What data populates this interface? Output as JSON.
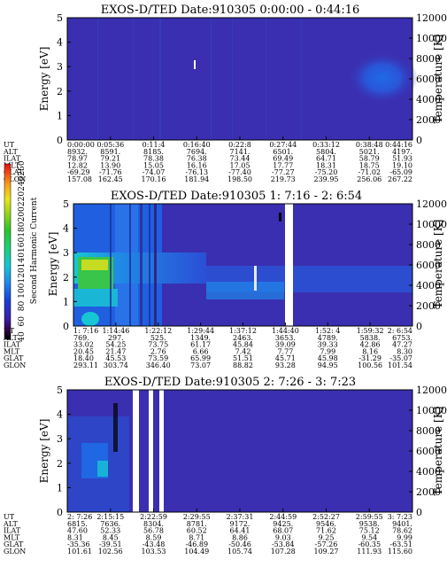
{
  "chart_data": [
    {
      "type": "heatmap",
      "title": "EXOS-D/TED   Date:910305  0:00:00 - 0:44:16",
      "ylabel": "Energy [eV]",
      "y2label": "Temperature [K]",
      "ylim": [
        0,
        5
      ],
      "y_ticks": [
        "0",
        "1",
        "2",
        "3",
        "4",
        "5"
      ],
      "y2lim": [
        0,
        12000
      ],
      "y2_ticks": [
        "0",
        "2000",
        "4000",
        "6000",
        "8000",
        "10000",
        "12000"
      ],
      "orbit_labels": [
        "UT",
        "ALT",
        "ILAT",
        "MLT",
        "GLAT",
        "GLON"
      ],
      "orbit_columns": [
        [
          "0:00:00",
          "8932.",
          "78.97",
          "12.82",
          "-69.29",
          "157.08"
        ],
        [
          "0:05:36",
          "8591.",
          "79.21",
          "13.90",
          "-71.76",
          "162.45"
        ],
        [
          "0:11:4",
          "8185.",
          "78.38",
          "15.05",
          "-74.07",
          "170.16"
        ],
        [
          "0:16:40",
          "7694.",
          "76.38",
          "16.16",
          "-76.13",
          "181.94"
        ],
        [
          "0:22:8",
          "7141.",
          "73.44",
          "17.05",
          "-77.40",
          "198.50"
        ],
        [
          "0:27:44",
          "6501.",
          "69.49",
          "17.77",
          "-77.27",
          "219.73"
        ],
        [
          "0:33:12",
          "5804.",
          "64.71",
          "18.31",
          "-75.20",
          "239.95"
        ],
        [
          "0:38:48",
          "5021.",
          "58.79",
          "18.75",
          "-71.02",
          "256.06"
        ],
        [
          "0:44:16",
          "4197.",
          "51.93",
          "19.10",
          "-65.09",
          "267.22"
        ]
      ]
    },
    {
      "type": "heatmap",
      "title": "EXOS-D/TED   Date:910305  1: 7:16 - 2: 6:54",
      "ylabel": "Energy [eV]",
      "y2label": "Temperature [K]",
      "ylim": [
        0,
        5
      ],
      "y_ticks": [
        "0",
        "1",
        "2",
        "3",
        "4",
        "5"
      ],
      "y2lim": [
        0,
        12000
      ],
      "y2_ticks": [
        "0",
        "2000",
        "4000",
        "6000",
        "8000",
        "10000",
        "12000"
      ],
      "orbit_labels": [
        "UT",
        "ALT",
        "ILAT",
        "MLT",
        "GLAT",
        "GLON"
      ],
      "orbit_columns": [
        [
          "1: 7:16",
          "769.",
          "33.02",
          "20.45",
          "18.40",
          "293.11"
        ],
        [
          "1:14:46",
          "297.",
          "54.25",
          "21.47",
          "45.53",
          "303.74"
        ],
        [
          "1:22:12",
          "525.",
          "73.75",
          "2.76",
          "73.59",
          "346.40"
        ],
        [
          "1:29:44",
          "1349.",
          "61.17",
          "6.66",
          "65.99",
          "73.07"
        ],
        [
          "1:37:12",
          "2463.",
          "45.84",
          "7.42",
          "51.51",
          "88.82"
        ],
        [
          "1:44:40",
          "3653.",
          "39.09",
          "7.77",
          "45.71",
          "93.28"
        ],
        [
          "1:52: 4",
          "4789.",
          "39.33",
          "7.99",
          "45.98",
          "94.95"
        ],
        [
          "1:59:32",
          "5838.",
          "42.86",
          "8.16",
          "-31.29",
          "100.56"
        ],
        [
          "2: 6:54",
          "6753.",
          "47.27",
          "8.30",
          "-35.07",
          "101.54"
        ]
      ],
      "colorbar": {
        "label": "Second Harmonic Current",
        "ticks": [
          "40",
          "60",
          "80",
          "100",
          "120",
          "140",
          "160",
          "180",
          "200",
          "220",
          "240",
          "250"
        ]
      }
    },
    {
      "type": "heatmap",
      "title": "EXOS-D/TED   Date:910305  2: 7:26 - 3: 7:23",
      "ylabel": "Energy [eV]",
      "y2label": "Temperature [K]",
      "ylim": [
        0,
        5
      ],
      "y_ticks": [
        "0",
        "1",
        "2",
        "3",
        "4",
        "5"
      ],
      "y2lim": [
        0,
        12000
      ],
      "y2_ticks": [
        "0",
        "2000",
        "4000",
        "6000",
        "8000",
        "10000",
        "12000"
      ],
      "orbit_labels": [
        "UT",
        "ALT",
        "ILAT",
        "MLT",
        "GLAT",
        "GLON"
      ],
      "orbit_columns": [
        [
          "2: 7:26",
          "6815.",
          "47.60",
          "8.31",
          "-35.36",
          "101.61"
        ],
        [
          "2:15:15",
          "7636.",
          "52.33",
          "8.45",
          "-39.51",
          "102.56"
        ],
        [
          "2:22:59",
          "8304.",
          "56.78",
          "8.59",
          "-43.48",
          "103.53"
        ],
        [
          "2:29:55",
          "8781.",
          "60.52",
          "8.71",
          "-46.89",
          "104.49"
        ],
        [
          "2:37:31",
          "9172.",
          "64.41",
          "8.86",
          "-50.46",
          "105.74"
        ],
        [
          "2:44:59",
          "9425.",
          "68.07",
          "9.03",
          "-53.84",
          "107.28"
        ],
        [
          "2:52:27",
          "9546.",
          "71.62",
          "9.25",
          "-57.26",
          "109.27"
        ],
        [
          "2:59:55",
          "9538.",
          "75.12",
          "9.54",
          "-60.35",
          "111.93"
        ],
        [
          "3: 7:23",
          "9401.",
          "78.62",
          "9.99",
          "-63.51",
          "115.60"
        ]
      ]
    }
  ]
}
